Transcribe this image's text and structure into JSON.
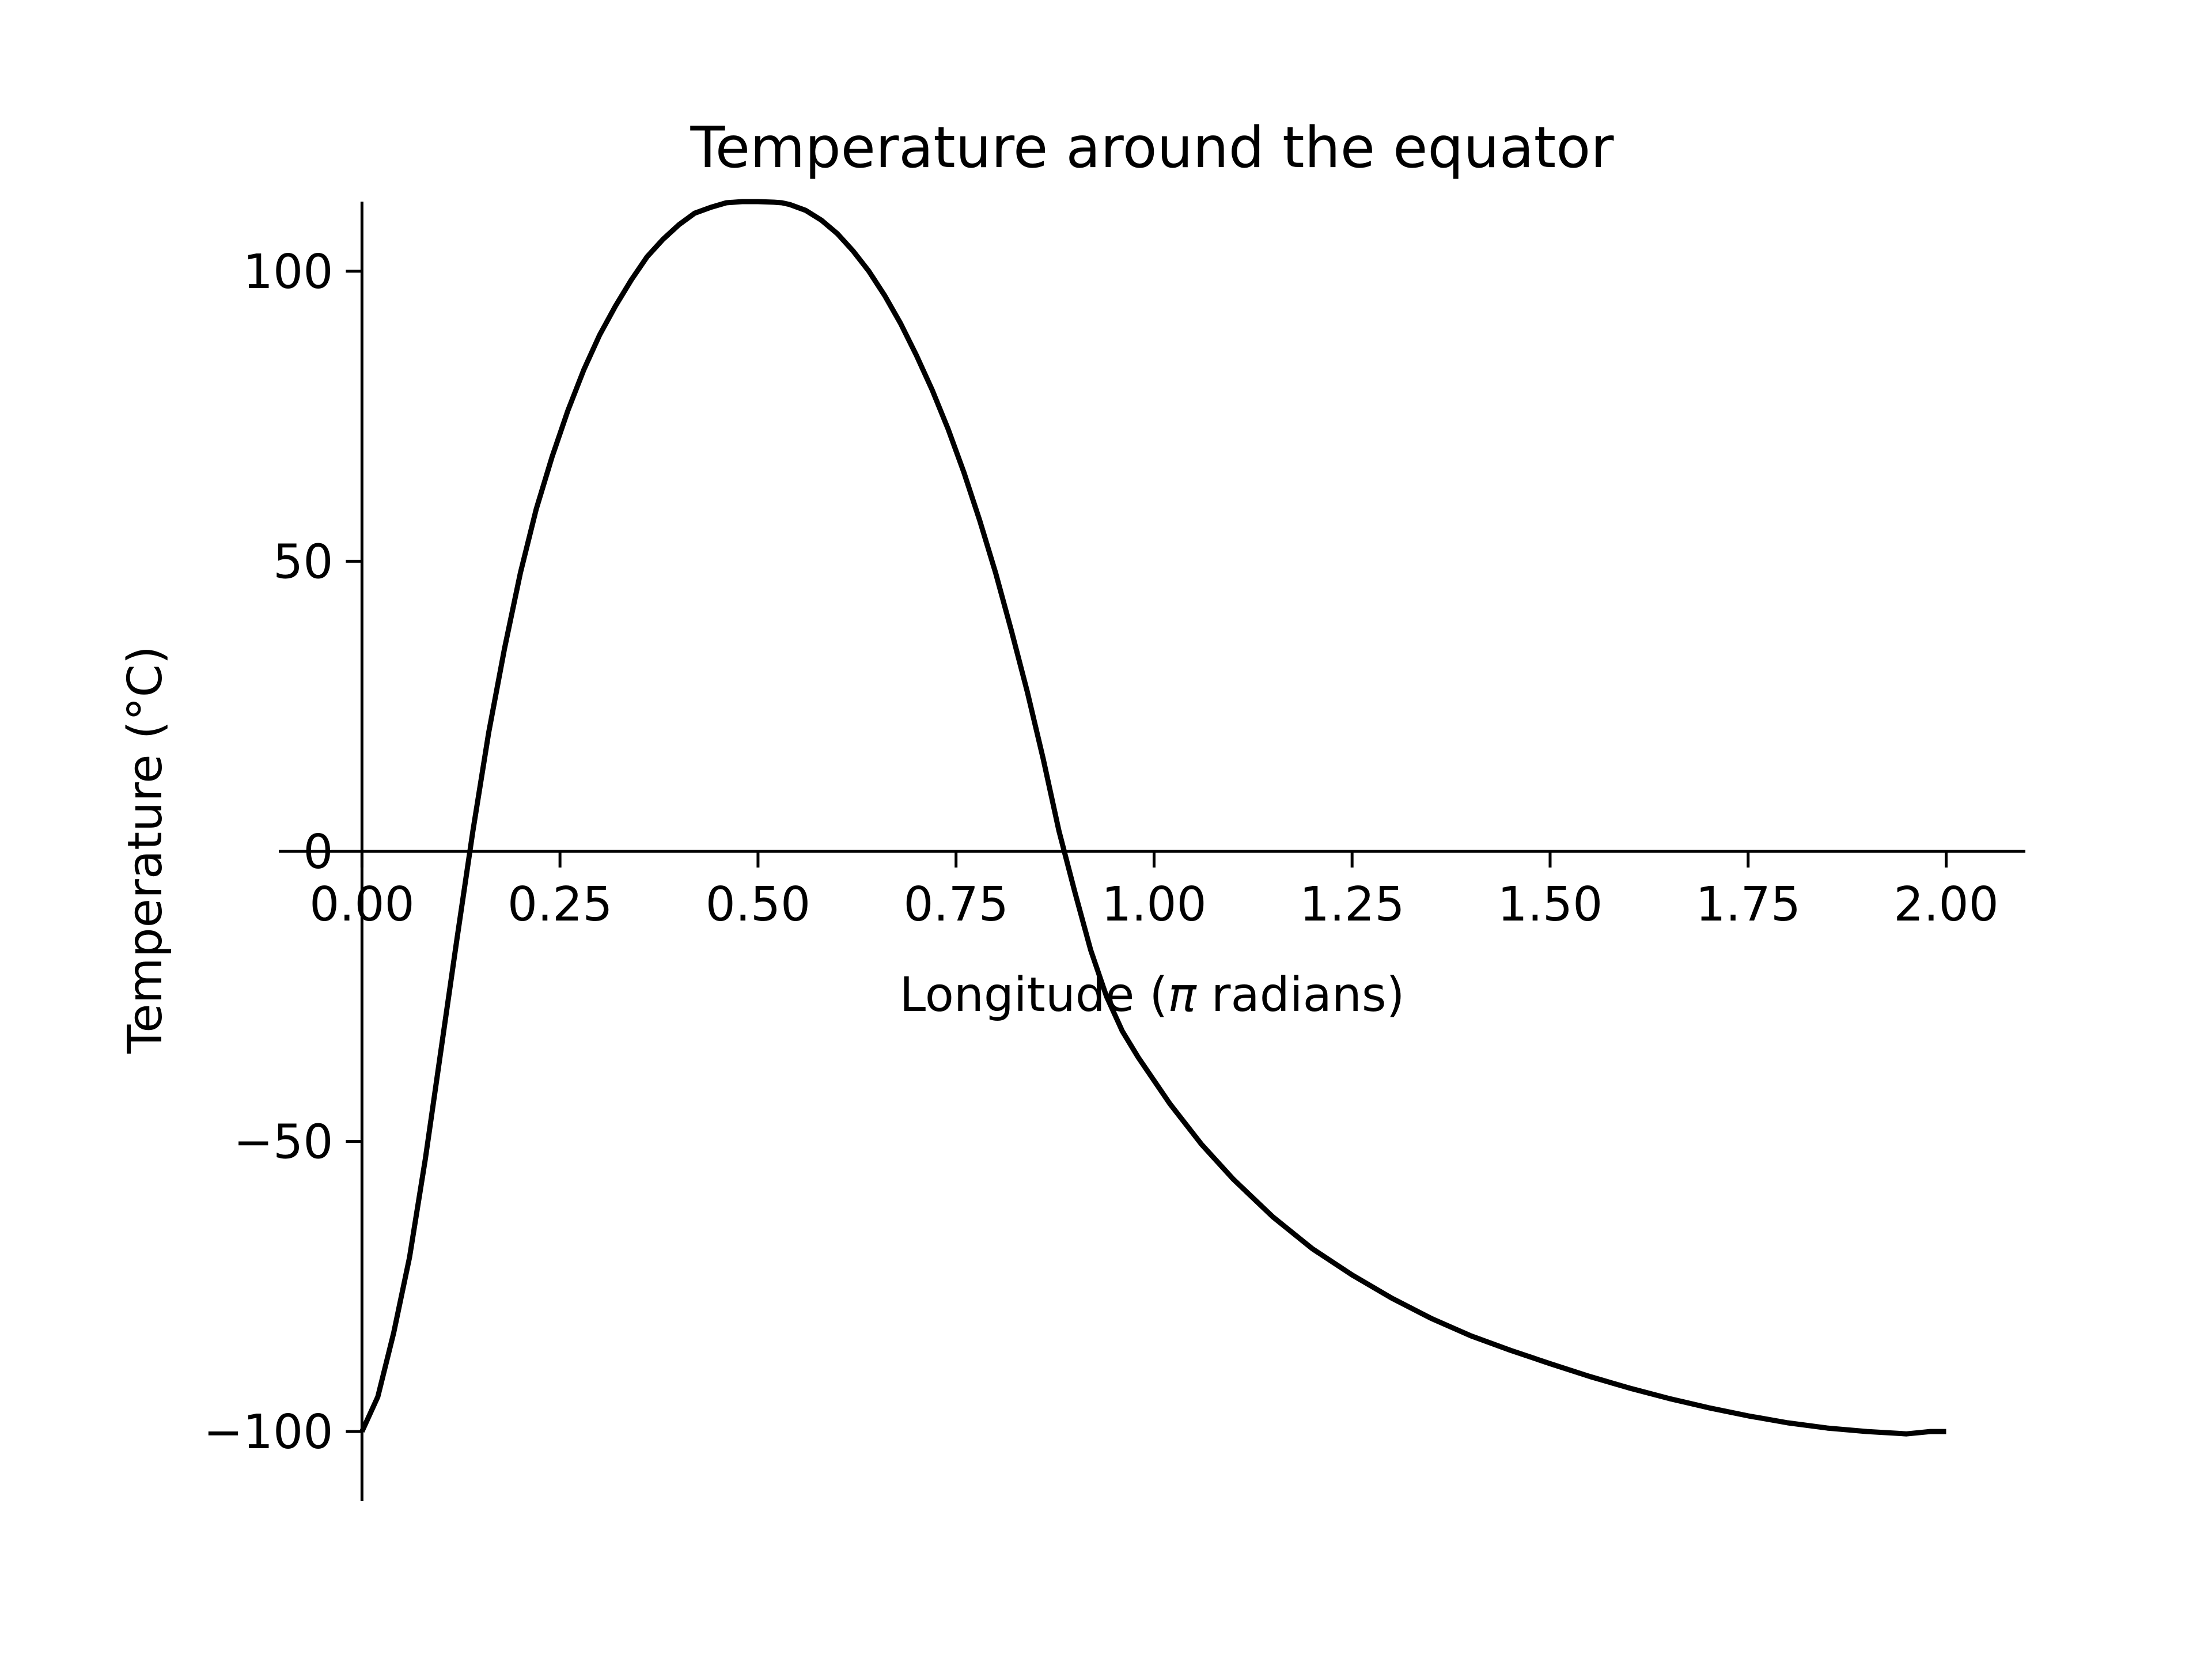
{
  "chart_data": {
    "type": "line",
    "title": "Temperature around the equator",
    "xlabel": "Longitude ($\\pi$ radians)",
    "xlabel_parts": [
      "Longitude (",
      "π",
      " radians)"
    ],
    "ylabel": "Temperature (°C)",
    "xlim": [
      -0.105,
      2.1
    ],
    "ylim": [
      -112,
      112
    ],
    "xticks": [
      0.0,
      0.25,
      0.5,
      0.75,
      1.0,
      1.25,
      1.5,
      1.75,
      2.0
    ],
    "xtick_labels": [
      "0.00",
      "0.25",
      "0.50",
      "0.75",
      "1.00",
      "1.25",
      "1.50",
      "1.75",
      "2.00"
    ],
    "yticks": [
      -100,
      -50,
      0,
      50,
      100
    ],
    "ytick_labels": [
      "−100",
      "−50",
      "0",
      "50",
      "100"
    ],
    "grid": false,
    "spines": "centered at origin",
    "series": [
      {
        "color": "#000000",
        "x": [
          0.0,
          0.02,
          0.04,
          0.06,
          0.08,
          0.1,
          0.12,
          0.14,
          0.16,
          0.18,
          0.2,
          0.22,
          0.24,
          0.26,
          0.28,
          0.3,
          0.32,
          0.34,
          0.36,
          0.38,
          0.4,
          0.42,
          0.44,
          0.46,
          0.48,
          0.5,
          0.52,
          0.53,
          0.54,
          0.56,
          0.58,
          0.6,
          0.62,
          0.64,
          0.66,
          0.68,
          0.7,
          0.72,
          0.74,
          0.76,
          0.78,
          0.8,
          0.82,
          0.84,
          0.86,
          0.88,
          0.9,
          0.92,
          0.94,
          0.96,
          0.98,
          1.0,
          1.02,
          1.04,
          1.06,
          1.08,
          1.1,
          1.15,
          1.2,
          1.25,
          1.3,
          1.35,
          1.4,
          1.45,
          1.5,
          1.55,
          1.6,
          1.65,
          1.7,
          1.75,
          1.8,
          1.85,
          1.9,
          1.95,
          1.98,
          2.0
        ],
        "y": [
          -100.0,
          -94.0,
          -83.0,
          -70.0,
          -53.0,
          -34.0,
          -15.0,
          3.5,
          20.5,
          35.0,
          48.0,
          59.0,
          68.0,
          76.0,
          83.0,
          89.0,
          94.0,
          98.5,
          102.5,
          105.5,
          108.0,
          110.0,
          111.0,
          111.8,
          112.0,
          112.0,
          111.9,
          111.8,
          111.5,
          110.5,
          108.8,
          106.5,
          103.5,
          100.0,
          95.8,
          91.0,
          85.5,
          79.5,
          72.8,
          65.3,
          57.0,
          48.0,
          38.0,
          27.5,
          16.0,
          3.5,
          -7.0,
          -17.0,
          -25.0,
          -31.0,
          -35.5,
          -39.5,
          -43.5,
          -47.0,
          -50.5,
          -53.5,
          -56.5,
          -63.0,
          -68.5,
          -73.0,
          -77.0,
          -80.5,
          -83.5,
          -86.0,
          -88.3,
          -90.5,
          -92.5,
          -94.3,
          -95.9,
          -97.3,
          -98.5,
          -99.4,
          -100.0,
          -100.4,
          -100.0,
          -100.0
        ]
      }
    ]
  }
}
